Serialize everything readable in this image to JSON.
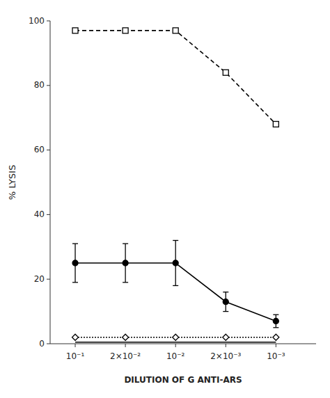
{
  "chart_data": {
    "type": "line",
    "xlabel": "DILUTION OF G ANTI-ARS",
    "ylabel": "% LYSIS",
    "categories": [
      "10⁻¹",
      "2×10⁻²",
      "10⁻²",
      "2×10⁻³",
      "10⁻³"
    ],
    "series": [
      {
        "values": [
          97,
          97,
          97,
          84,
          68
        ],
        "color": "#000000",
        "marker": "open-square",
        "line_style": "dashed"
      },
      {
        "values": [
          25,
          25,
          25,
          13,
          7
        ],
        "error_low": [
          6,
          6,
          7,
          3,
          2
        ],
        "error_high": [
          6,
          6,
          7,
          3,
          2
        ],
        "color": "#000000",
        "marker": "filled-circle",
        "line_style": "solid"
      },
      {
        "values": [
          2,
          2,
          2,
          2,
          2
        ],
        "color": "#000000",
        "marker": "open-diamond",
        "line_style": "dotted"
      },
      {
        "values": [
          0.5,
          0.5,
          0.5,
          0.5,
          0.5
        ],
        "color": "#000000",
        "marker": "none",
        "line_style": "solid"
      }
    ],
    "ylim": [
      0,
      100
    ],
    "yticks": [
      0,
      20,
      40,
      60,
      80,
      100
    ],
    "grid": false
  }
}
